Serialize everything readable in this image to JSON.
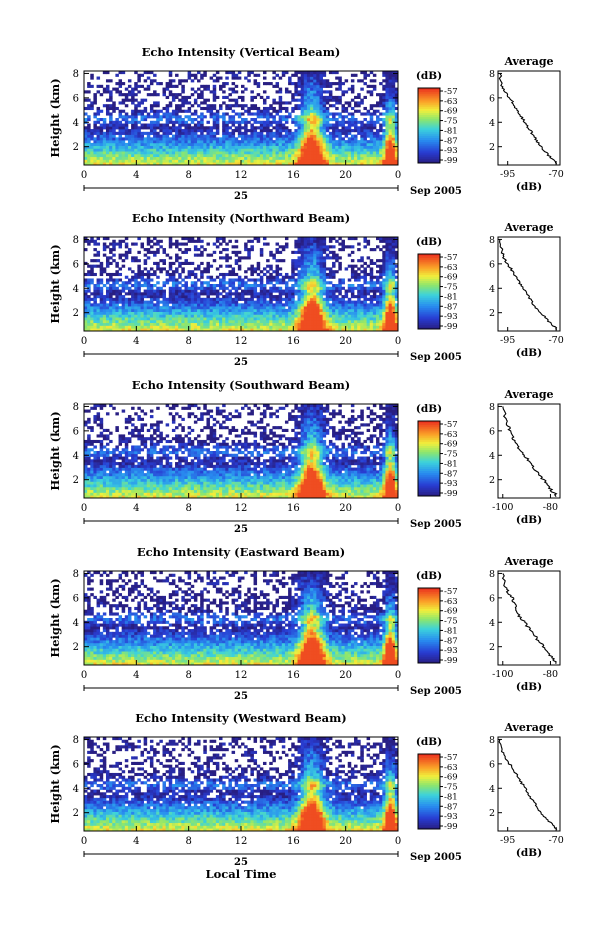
{
  "figure": {
    "xlabel_bottom": "Local Time",
    "date_label": "Sep 2005",
    "day_label": "25",
    "colorbar_unit": "(dB)",
    "average_title": "Average",
    "average_xlabel": "(dB)",
    "ylabel": "Height (km)"
  },
  "chart_data": [
    {
      "type": "heatmap",
      "title": "Echo Intensity (Vertical Beam)",
      "xlabel": "",
      "ylabel": "Height (km)",
      "x_ticks": [
        "0",
        "4",
        "8",
        "12",
        "16",
        "20",
        "0"
      ],
      "xlim": [
        0,
        24
      ],
      "y_ticks": [
        "2",
        "4",
        "6",
        "8"
      ],
      "ylim": [
        0.5,
        8.2
      ],
      "colorbar_ticks": [
        "-57",
        "-63",
        "-69",
        "-75",
        "-81",
        "-87",
        "-93",
        "-99"
      ],
      "average_profile": {
        "type": "line",
        "title": "Average",
        "xlabel": "(dB)",
        "x_ticks": [
          "-95",
          "-70"
        ],
        "xlim": [
          -100,
          -68
        ],
        "y_ticks": [
          "2",
          "4",
          "6",
          "8"
        ],
        "ylim": [
          0.5,
          8.2
        ],
        "x": [
          -69,
          -72,
          -75,
          -78,
          -80,
          -82,
          -84,
          -86,
          -88,
          -90,
          -92,
          -94,
          -96,
          -98,
          -99
        ],
        "y": [
          0.6,
          1.0,
          1.5,
          2.0,
          2.5,
          3.0,
          3.5,
          4.0,
          4.5,
          5.0,
          5.5,
          6.0,
          6.5,
          7.0,
          8.0
        ]
      }
    },
    {
      "type": "heatmap",
      "title": "Echo Intensity (Northward Beam)",
      "xlabel": "",
      "ylabel": "Height (km)",
      "x_ticks": [
        "0",
        "4",
        "8",
        "12",
        "16",
        "20",
        "0"
      ],
      "xlim": [
        0,
        24
      ],
      "y_ticks": [
        "2",
        "4",
        "6",
        "8"
      ],
      "ylim": [
        0.5,
        8.2
      ],
      "colorbar_ticks": [
        "-57",
        "-63",
        "-69",
        "-75",
        "-81",
        "-87",
        "-93",
        "-99"
      ],
      "average_profile": {
        "type": "line",
        "title": "Average",
        "xlabel": "(dB)",
        "x_ticks": [
          "-95",
          "-70"
        ],
        "xlim": [
          -100,
          -68
        ],
        "y_ticks": [
          "2",
          "4",
          "6",
          "8"
        ],
        "ylim": [
          0.5,
          8.2
        ],
        "x": [
          -69,
          -72,
          -75,
          -78,
          -81,
          -83,
          -85,
          -87,
          -89,
          -91,
          -93,
          -95,
          -97,
          -98,
          -99
        ],
        "y": [
          0.6,
          1.0,
          1.5,
          2.0,
          2.5,
          3.0,
          3.5,
          4.0,
          4.5,
          5.0,
          5.5,
          6.0,
          6.5,
          7.0,
          8.0
        ]
      }
    },
    {
      "type": "heatmap",
      "title": "Echo Intensity (Southward Beam)",
      "xlabel": "",
      "ylabel": "Height (km)",
      "x_ticks": [
        "0",
        "4",
        "8",
        "12",
        "16",
        "20",
        "0"
      ],
      "xlim": [
        0,
        24
      ],
      "y_ticks": [
        "2",
        "4",
        "6",
        "8"
      ],
      "ylim": [
        0.5,
        8.2
      ],
      "colorbar_ticks": [
        "-57",
        "-63",
        "-69",
        "-75",
        "-81",
        "-87",
        "-93",
        "-99"
      ],
      "average_profile": {
        "type": "line",
        "title": "Average",
        "xlabel": "(dB)",
        "x_ticks": [
          "-100",
          "-80"
        ],
        "xlim": [
          -102,
          -76
        ],
        "y_ticks": [
          "2",
          "4",
          "6",
          "8"
        ],
        "ylim": [
          0.5,
          8.2
        ],
        "x": [
          -77,
          -79,
          -81,
          -83,
          -85,
          -87,
          -89,
          -91,
          -93,
          -95,
          -96,
          -97,
          -98,
          -99,
          -100
        ],
        "y": [
          0.6,
          1.0,
          1.5,
          2.0,
          2.5,
          3.0,
          3.5,
          4.0,
          4.5,
          5.0,
          5.5,
          6.0,
          6.5,
          7.0,
          8.0
        ]
      }
    },
    {
      "type": "heatmap",
      "title": "Echo Intensity (Eastward Beam)",
      "xlabel": "",
      "ylabel": "Height (km)",
      "x_ticks": [
        "0",
        "4",
        "8",
        "12",
        "16",
        "20",
        "0"
      ],
      "xlim": [
        0,
        24
      ],
      "y_ticks": [
        "2",
        "4",
        "6",
        "8"
      ],
      "ylim": [
        0.5,
        8.2
      ],
      "colorbar_ticks": [
        "-57",
        "-63",
        "-69",
        "-75",
        "-81",
        "-87",
        "-93",
        "-99"
      ],
      "average_profile": {
        "type": "line",
        "title": "Average",
        "xlabel": "(dB)",
        "x_ticks": [
          "-100",
          "-80"
        ],
        "xlim": [
          -102,
          -76
        ],
        "y_ticks": [
          "2",
          "4",
          "6",
          "8"
        ],
        "ylim": [
          0.5,
          8.2
        ],
        "x": [
          -77,
          -79,
          -81,
          -83,
          -85,
          -87,
          -89,
          -91,
          -93,
          -94,
          -95,
          -96,
          -98,
          -99,
          -100
        ],
        "y": [
          0.6,
          1.0,
          1.5,
          2.0,
          2.5,
          3.0,
          3.5,
          4.0,
          4.5,
          5.0,
          5.5,
          6.0,
          6.5,
          7.0,
          8.0
        ]
      }
    },
    {
      "type": "heatmap",
      "title": "Echo Intensity (Westward Beam)",
      "xlabel": "Local Time",
      "ylabel": "Height (km)",
      "x_ticks": [
        "0",
        "4",
        "8",
        "12",
        "16",
        "20",
        "0"
      ],
      "xlim": [
        0,
        24
      ],
      "y_ticks": [
        "2",
        "4",
        "6",
        "8"
      ],
      "ylim": [
        0.5,
        8.2
      ],
      "colorbar_ticks": [
        "-57",
        "-63",
        "-69",
        "-75",
        "-81",
        "-87",
        "-93",
        "-99"
      ],
      "average_profile": {
        "type": "line",
        "title": "Average",
        "xlabel": "(dB)",
        "x_ticks": [
          "-95",
          "-70"
        ],
        "xlim": [
          -100,
          -68
        ],
        "y_ticks": [
          "2",
          "4",
          "6",
          "8"
        ],
        "ylim": [
          0.5,
          8.2
        ],
        "x": [
          -69,
          -72,
          -75,
          -78,
          -80,
          -82,
          -84,
          -86,
          -88,
          -90,
          -92,
          -94,
          -96,
          -98,
          -99
        ],
        "y": [
          0.6,
          1.0,
          1.5,
          2.0,
          2.5,
          3.0,
          3.5,
          4.0,
          4.5,
          5.0,
          5.5,
          6.0,
          6.5,
          7.0,
          8.0
        ]
      }
    }
  ]
}
